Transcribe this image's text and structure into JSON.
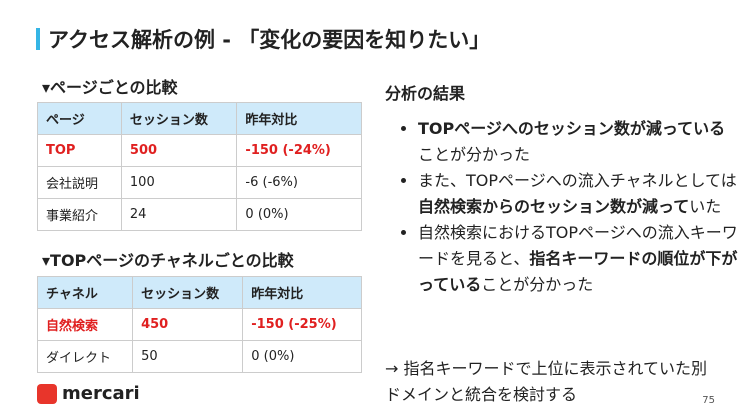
{
  "header": {
    "title": "アクセス解析の例 - 「変化の要因を知りたい」"
  },
  "left": {
    "section1": {
      "heading": "▾ページごとの比較",
      "table": {
        "columns": [
          "ページ",
          "セッション数",
          "昨年対比"
        ],
        "rows": [
          {
            "cells": [
              "TOP",
              "500",
              "-150 (-24%)"
            ],
            "highlight": true
          },
          {
            "cells": [
              "会社説明",
              "100",
              "-6 (-6%)"
            ],
            "highlight": false
          },
          {
            "cells": [
              "事業紹介",
              "24",
              "0 (0%)"
            ],
            "highlight": false
          }
        ]
      }
    },
    "section2": {
      "heading": "▾TOPページのチャネルごとの比較",
      "table": {
        "columns": [
          "チャネル",
          "セッション数",
          "昨年対比"
        ],
        "rows": [
          {
            "cells": [
              "自然検索",
              "450",
              "-150 (-25%)"
            ],
            "highlight": true
          },
          {
            "cells": [
              "ダイレクト",
              "50",
              "0 (0%)"
            ],
            "highlight": false
          }
        ]
      }
    }
  },
  "right": {
    "heading": "分析の結果",
    "bullets": [
      {
        "segments": [
          {
            "text": "TOPページへのセッション数が減っている",
            "bold": true
          },
          {
            "text": "ことが分かった",
            "bold": false
          }
        ]
      },
      {
        "segments": [
          {
            "text": "また、TOPページへの流入チャネルとしては",
            "bold": false
          },
          {
            "text": "自然検索からのセッション数が減って",
            "bold": true
          },
          {
            "text": "いた",
            "bold": false
          }
        ]
      },
      {
        "segments": [
          {
            "text": "自然検索におけるTOPページへの流入キーワードを見ると、",
            "bold": false
          },
          {
            "text": "指名キーワードの順位が下がっている",
            "bold": true
          },
          {
            "text": "ことが分かった",
            "bold": false
          }
        ]
      }
    ],
    "note": "→ 指名キーワードで上位に表示されていた別ドメインと統合を検討する"
  },
  "footer": {
    "logo": "mercari",
    "page_number": "75"
  }
}
